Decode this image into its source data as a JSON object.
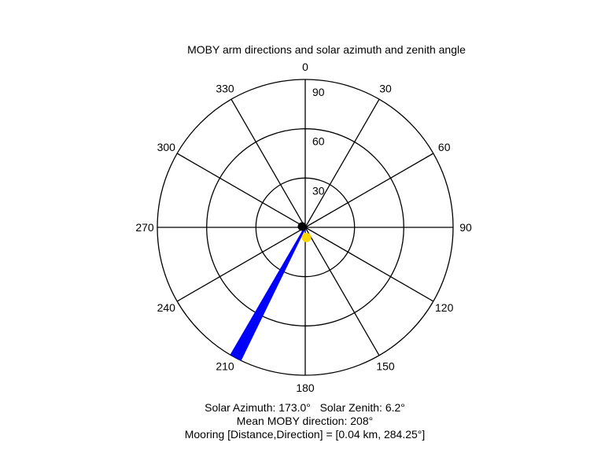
{
  "chart_data": {
    "type": "polar",
    "title": "MOBY arm directions and solar azimuth and zenith angle",
    "angle_ticks": [
      "0",
      "30",
      "60",
      "90",
      "120",
      "150",
      "180",
      "210",
      "240",
      "270",
      "300",
      "330"
    ],
    "angle_tick_values": [
      0,
      30,
      60,
      90,
      120,
      150,
      180,
      210,
      240,
      270,
      300,
      330
    ],
    "radius_ticks": [
      "30",
      "60",
      "90"
    ],
    "radius_tick_values": [
      30,
      60,
      90
    ],
    "rmax": 90,
    "direction": "clockwise",
    "zero_location": "top",
    "grid": true,
    "series": [
      {
        "marker": "lines",
        "color": "#0000ff",
        "angles_deg": [
          206.0,
          206.5,
          207.0,
          207.3,
          207.6,
          208.0,
          208.3,
          208.6,
          209.0,
          209.4,
          209.8,
          210.2
        ],
        "radius": 90
      },
      {
        "marker": "point",
        "color": "#000000",
        "angle_deg": 284.25,
        "radius": 2
      },
      {
        "marker": "point",
        "color": "#ffd700",
        "angle_deg": 173.0,
        "radius": 6.2
      }
    ]
  },
  "info": {
    "solar_line": "Solar Azimuth: 173.0°   Solar Zenith: 6.2°",
    "mean_line": "Mean MOBY direction: 208°",
    "mooring_line": "Mooring [Distance,Direction] = [0.04 km, 284.25°]"
  }
}
